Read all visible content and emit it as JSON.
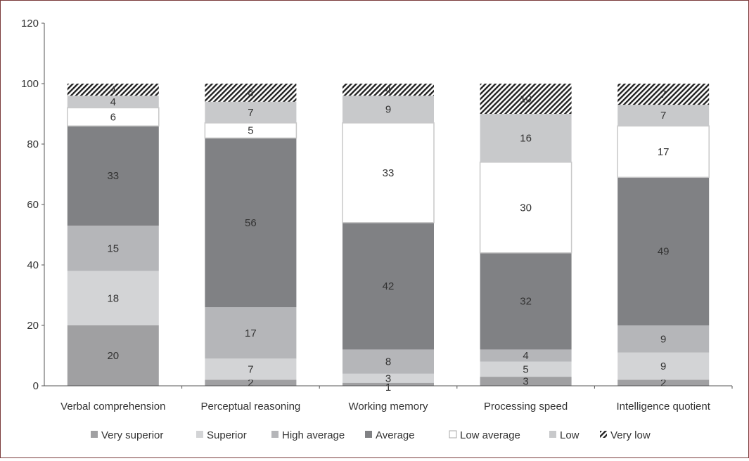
{
  "chart_data": {
    "type": "bar",
    "stacked": true,
    "title": "",
    "xlabel": "",
    "ylabel": "",
    "ylim": [
      0,
      120
    ],
    "yticks": [
      0,
      20,
      40,
      60,
      80,
      100,
      120
    ],
    "grid": false,
    "legend_position": "bottom",
    "categories": [
      "Verbal comprehension",
      "Perceptual reasoning",
      "Working memory",
      "Processing speed",
      "Intelligence quotient"
    ],
    "series": [
      {
        "name": "Very superior",
        "color": "#a0a0a2",
        "pattern": "solid",
        "values": [
          20,
          2,
          1,
          3,
          2
        ]
      },
      {
        "name": "Superior",
        "color": "#d3d4d6",
        "pattern": "solid",
        "values": [
          18,
          7,
          3,
          5,
          9
        ]
      },
      {
        "name": "High average",
        "color": "#b5b6b9",
        "pattern": "solid",
        "values": [
          15,
          17,
          8,
          4,
          9
        ]
      },
      {
        "name": "Average",
        "color": "#808184",
        "pattern": "solid",
        "values": [
          33,
          56,
          42,
          32,
          49
        ]
      },
      {
        "name": "Low average",
        "color": "#ffffff",
        "pattern": "solid",
        "values": [
          6,
          5,
          33,
          30,
          17
        ]
      },
      {
        "name": "Low",
        "color": "#c8c9cb",
        "pattern": "solid",
        "values": [
          4,
          7,
          9,
          16,
          7
        ]
      },
      {
        "name": "Very low",
        "color": "#333333",
        "pattern": "hatch",
        "values": [
          4,
          6,
          4,
          10,
          7
        ]
      }
    ]
  }
}
